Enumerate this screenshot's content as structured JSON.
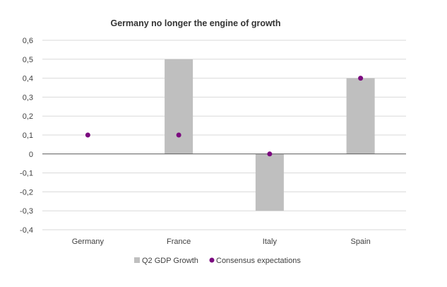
{
  "chart_data": {
    "type": "bar",
    "title": "Germany no longer the engine of growth",
    "categories": [
      "Germany",
      "France",
      "Italy",
      "Spain"
    ],
    "series": [
      {
        "name": "Q2 GDP Growth",
        "kind": "bar",
        "color": "#bfbfbf",
        "values": [
          0,
          0.5,
          -0.3,
          0.4
        ]
      },
      {
        "name": "Consensus expectations",
        "kind": "point",
        "color": "#7b0a7f",
        "values": [
          0.1,
          0.1,
          0,
          0.4
        ]
      }
    ],
    "ylim": [
      -0.4,
      0.6
    ],
    "yticks": [
      0.6,
      0.5,
      0.4,
      0.3,
      0.2,
      0.1,
      0,
      -0.1,
      -0.2,
      -0.3,
      -0.4
    ],
    "ytick_labels": [
      "0,6",
      "0,5",
      "0,4",
      "0,3",
      "0,2",
      "0,1",
      "0",
      "-0,1",
      "-0,2",
      "-0,3",
      "-0,4"
    ],
    "grid": true,
    "legend": "bottom"
  }
}
